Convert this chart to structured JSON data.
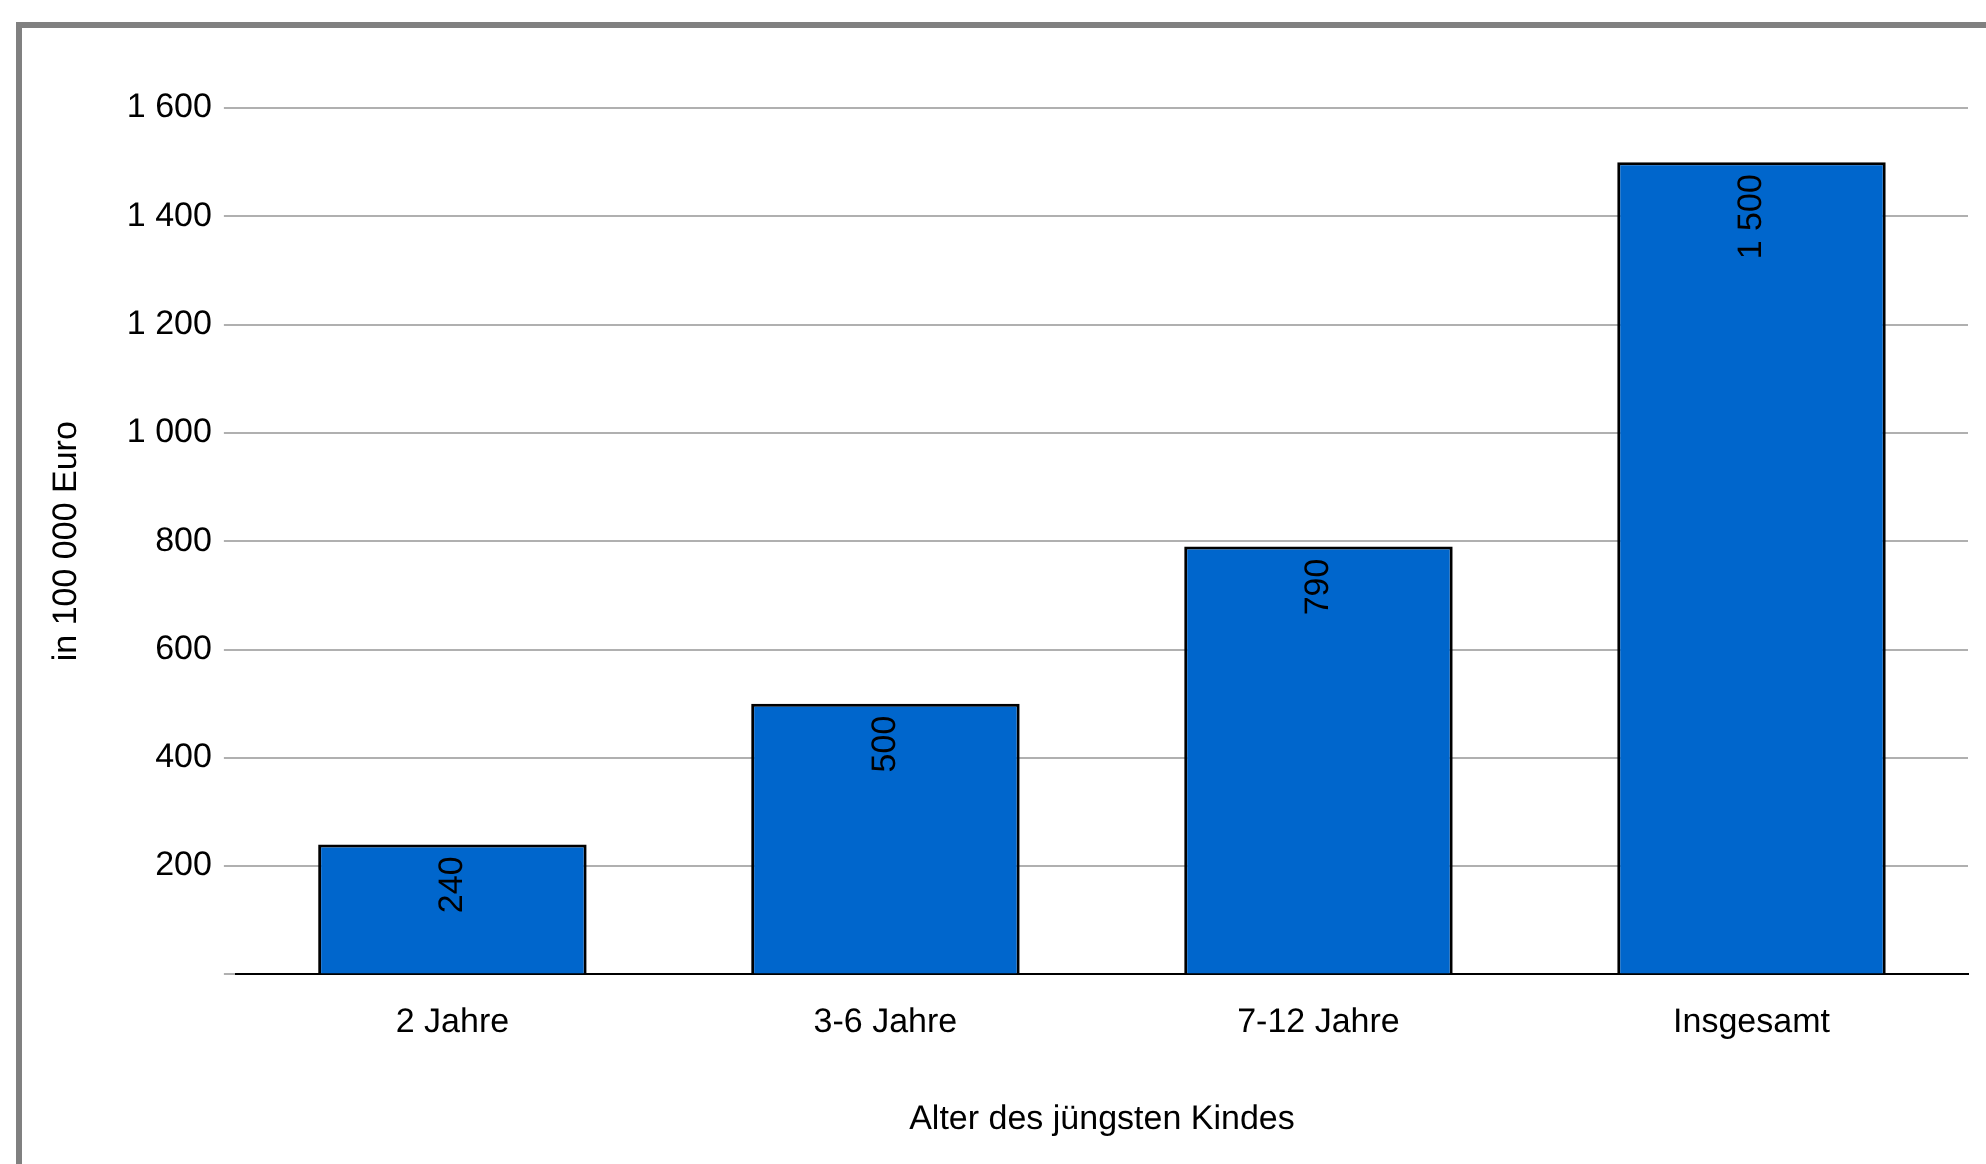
{
  "chart_data": {
    "type": "bar",
    "xlabel": "Alter des jüngsten Kindes",
    "ylabel": "in 100 000 Euro",
    "categories": [
      "2 Jahre",
      "3-6 Jahre",
      "7-12 Jahre",
      "Insgesamt"
    ],
    "values": [
      240,
      500,
      790,
      1500
    ],
    "color": "#0066cc",
    "value_labels": [
      "240",
      "500",
      "790",
      "1 500"
    ],
    "ylim": [
      0,
      1600
    ],
    "yticks": [
      {
        "value": 0,
        "label": null
      },
      200,
      400,
      600,
      800,
      {
        "value": 1000,
        "label": "1 000"
      },
      {
        "value": 1200,
        "label": "1 200"
      },
      {
        "value": 1400,
        "label": "1 400"
      },
      {
        "value": 1600,
        "label": "1 600"
      }
    ],
    "grid": "y"
  }
}
